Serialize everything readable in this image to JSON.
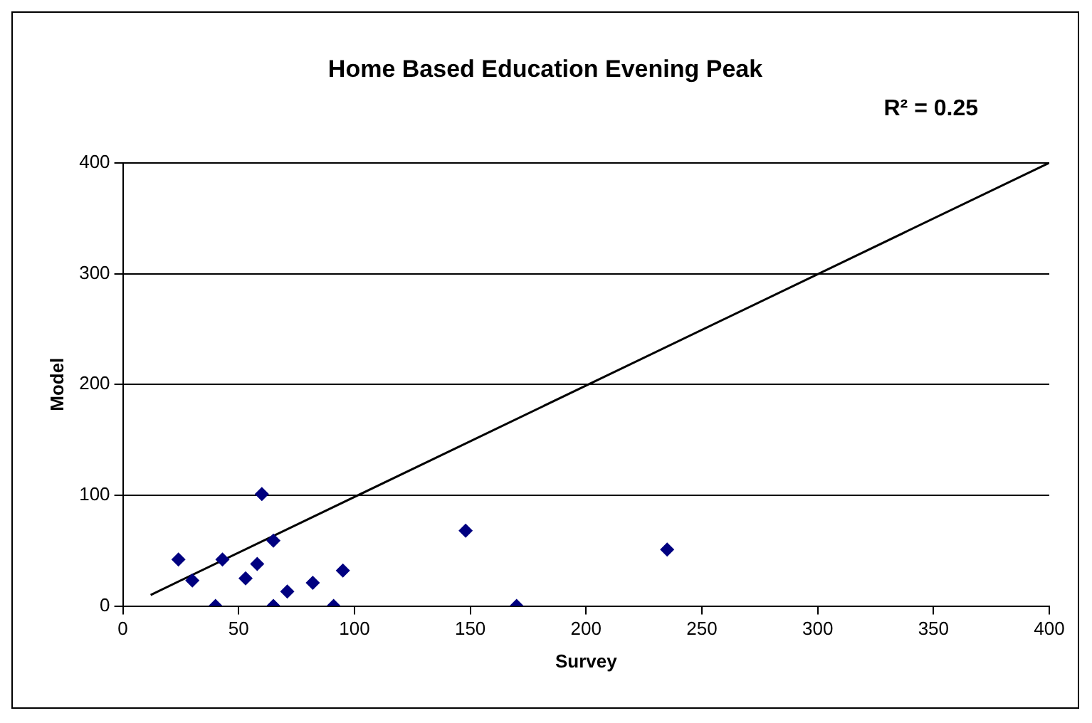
{
  "chart_data": {
    "type": "scatter",
    "title": "Home Based Education Evening Peak",
    "xlabel": "Survey",
    "ylabel": "Model",
    "annotations": [
      "R² = 0.25"
    ],
    "series": [
      {
        "type": "scatter",
        "color": "#000080",
        "marker": "diamond",
        "x": [
          24,
          30,
          40,
          43,
          53,
          58,
          60,
          65,
          65,
          71,
          82,
          91,
          95,
          148,
          170,
          235
        ],
        "values": [
          42,
          23,
          0,
          42,
          25,
          38,
          101,
          59,
          0,
          13,
          21,
          0,
          32,
          68,
          0,
          51
        ]
      },
      {
        "type": "line",
        "color": "#000000",
        "marker": "none",
        "x": [
          12,
          400
        ],
        "values": [
          10,
          400
        ]
      }
    ],
    "xlim": [
      0,
      400
    ],
    "xticks": [
      0,
      50,
      100,
      150,
      200,
      250,
      300,
      350,
      400
    ],
    "ylim": [
      0,
      400
    ],
    "yticks": [
      0,
      100,
      200,
      300,
      400
    ],
    "grid": "y",
    "legend": false
  }
}
